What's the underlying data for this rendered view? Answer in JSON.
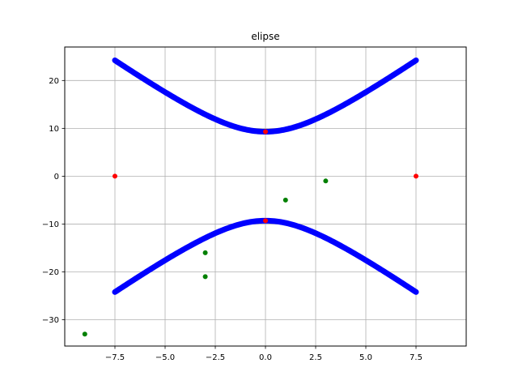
{
  "chart_data": {
    "type": "scatter",
    "title": "elipse",
    "xlabel": "",
    "ylabel": "",
    "xlim": [
      -10.0,
      10.0
    ],
    "ylim": [
      -35.5,
      27.0
    ],
    "grid": true,
    "x_ticks": [
      -7.5,
      -5.0,
      -2.5,
      0.0,
      2.5,
      5.0,
      7.5
    ],
    "y_ticks": [
      -30,
      -20,
      -10,
      0,
      10,
      20
    ],
    "x_tick_labels": [
      "−7.5",
      "−5.0",
      "−2.5",
      "0.0",
      "2.5",
      "5.0",
      "7.5"
    ],
    "y_tick_labels": [
      "−30",
      "−20",
      "−10",
      "0",
      "10",
      "20"
    ],
    "series": [
      {
        "kind": "hyperbola-curve",
        "color": "#0000ff",
        "equation": "y^2/a^2 - x^2/b^2 = 1",
        "a": 9.3,
        "b": 3.12,
        "x_range": [
          -7.5,
          7.5
        ]
      },
      {
        "kind": "points",
        "color": "#ff0000",
        "x": [
          -7.5,
          7.5,
          0.0,
          0.0
        ],
        "y": [
          0.0,
          0.0,
          9.3,
          -9.3
        ]
      },
      {
        "kind": "points",
        "color": "#008000",
        "x": [
          3.0,
          1.0,
          -3.0,
          -3.0,
          -9.0
        ],
        "y": [
          -1.0,
          -5.0,
          -16.0,
          -21.0,
          -33.0
        ]
      }
    ]
  }
}
